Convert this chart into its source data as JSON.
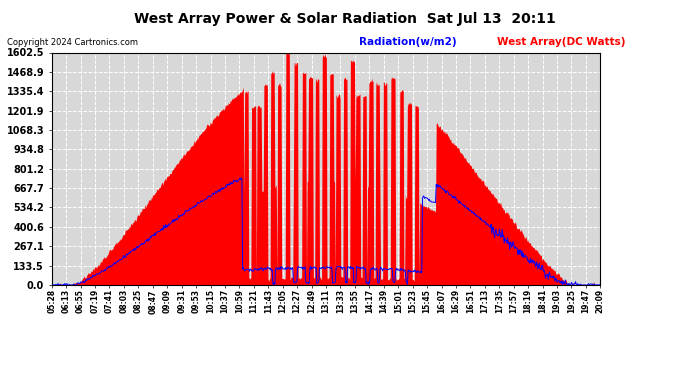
{
  "title": "West Array Power & Solar Radiation  Sat Jul 13  20:11",
  "copyright": "Copyright 2024 Cartronics.com",
  "legend_radiation": "Radiation(w/m2)",
  "legend_west": "West Array(DC Watts)",
  "yticks": [
    0.0,
    133.5,
    267.1,
    400.6,
    534.2,
    667.7,
    801.2,
    934.8,
    1068.3,
    1201.9,
    1335.4,
    1468.9,
    1602.5
  ],
  "ymax": 1602.5,
  "ymin": 0.0,
  "background_color": "#ffffff",
  "plot_bg_color": "#d8d8d8",
  "grid_color": "#ffffff",
  "radiation_color": "#0000ff",
  "west_fill_color": "#ff0000",
  "west_line_color": "#ff0000",
  "xtick_labels": [
    "05:28",
    "06:13",
    "06:55",
    "07:19",
    "07:41",
    "08:03",
    "08:25",
    "08:47",
    "09:09",
    "09:31",
    "09:53",
    "10:15",
    "10:37",
    "10:59",
    "11:21",
    "11:43",
    "12:05",
    "12:27",
    "12:49",
    "13:11",
    "13:33",
    "13:55",
    "14:17",
    "14:39",
    "15:01",
    "15:23",
    "15:45",
    "16:07",
    "16:29",
    "16:51",
    "17:13",
    "17:35",
    "17:57",
    "18:19",
    "18:41",
    "19:03",
    "19:25",
    "19:47",
    "20:09"
  ],
  "n_points": 800
}
